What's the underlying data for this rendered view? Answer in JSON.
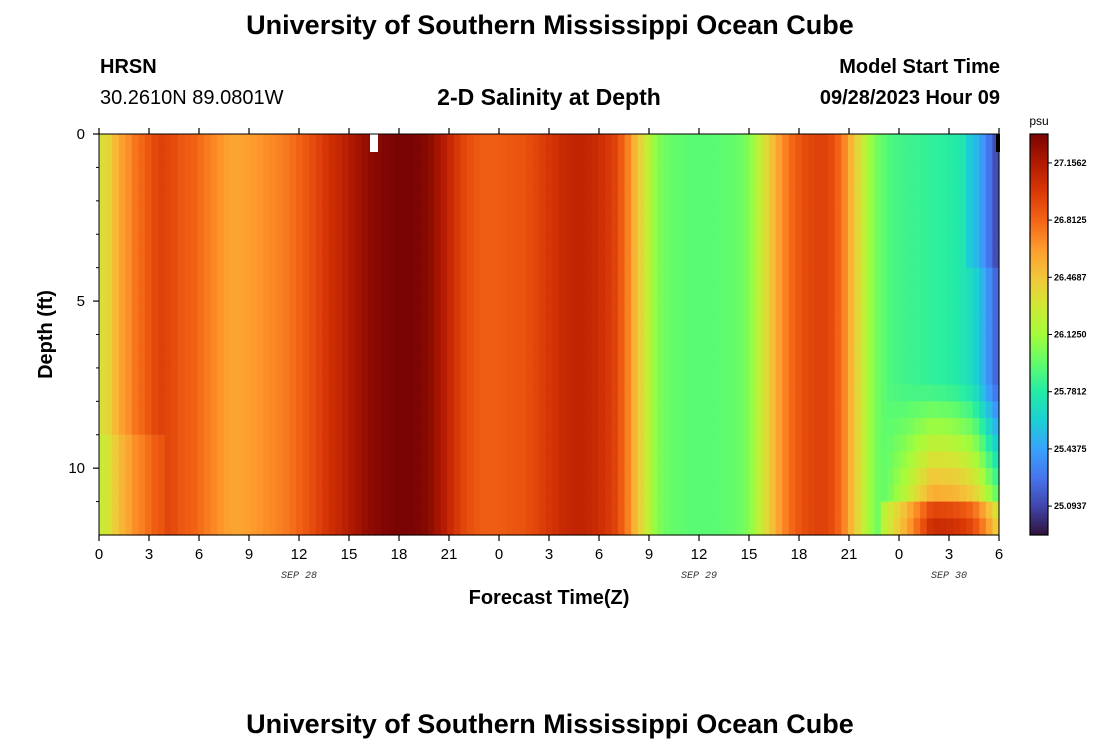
{
  "page": {
    "title_top": "University of Southern Mississippi Ocean Cube",
    "title_bottom": "University of Southern Mississippi Ocean Cube",
    "station": "HRSN",
    "coords": "30.2610N  89.0801W",
    "plot_title": "2-D Salinity at Depth",
    "model_start_label": "Model Start Time",
    "model_start_value": "09/28/2023 Hour 09"
  },
  "chart_data": {
    "type": "heatmap",
    "title": "2-D Salinity at Depth",
    "xlabel": "Forecast Time(Z)",
    "ylabel": "Depth (ft)",
    "x_ticks": [
      "0",
      "3",
      "6",
      "9",
      "12",
      "15",
      "18",
      "21",
      "0",
      "3",
      "6",
      "9",
      "12",
      "15",
      "18",
      "21",
      "0",
      "3",
      "6"
    ],
    "date_labels": [
      {
        "text": "SEP 28",
        "at_hour": 12
      },
      {
        "text": "SEP 29",
        "at_hour": 36
      },
      {
        "text": "SEP 30",
        "at_hour": 51
      }
    ],
    "y_ticks": [
      "0",
      "5",
      "10"
    ],
    "x_range_hours": [
      0,
      54
    ],
    "y_range_ft": [
      0,
      12
    ],
    "colorbar": {
      "unit": "psu",
      "min": 24.92,
      "max": 27.33,
      "tick_labels": [
        "27.1562",
        "26.8125",
        "26.4687",
        "26.1250",
        "25.7812",
        "25.4375",
        "25.0937"
      ],
      "tick_values": [
        27.1562,
        26.8125,
        26.4687,
        26.125,
        25.7812,
        25.4375,
        25.0937
      ],
      "colors": [
        "#30123b",
        "#4145ab",
        "#4675ed",
        "#39a2fc",
        "#1bcfd4",
        "#24eca6",
        "#61fc6c",
        "#a4fc3b",
        "#d1e834",
        "#f3c63a",
        "#fe9b2d",
        "#f36315",
        "#d93806",
        "#b11901",
        "#7a0403"
      ]
    },
    "column_salinity_psu": [
      26.35,
      26.4,
      26.52,
      26.62,
      26.68,
      26.76,
      26.8,
      26.86,
      26.92,
      26.95,
      26.93,
      26.9,
      26.86,
      26.84,
      26.82,
      26.78,
      26.74,
      26.7,
      26.66,
      26.62,
      26.6,
      26.6,
      26.62,
      26.64,
      26.66,
      26.68,
      26.7,
      26.72,
      26.75,
      26.78,
      26.82,
      26.86,
      26.9,
      26.95,
      27.0,
      27.04,
      27.08,
      27.12,
      27.16,
      27.2,
      27.24,
      27.27,
      27.29,
      27.31,
      27.32,
      27.33,
      27.33,
      27.33,
      27.32,
      27.3,
      27.26,
      27.2,
      27.14,
      27.06,
      26.99,
      26.93,
      26.89,
      26.86,
      26.84,
      26.84,
      26.84,
      26.85,
      26.86,
      26.87,
      26.88,
      26.9,
      26.93,
      26.96,
      27.0,
      27.03,
      27.06,
      27.08,
      27.09,
      27.09,
      27.08,
      27.06,
      27.03,
      26.99,
      26.94,
      26.85,
      26.72,
      26.55,
      26.4,
      26.25,
      26.1,
      26.02,
      25.98,
      25.96,
      25.95,
      25.94,
      25.93,
      25.93,
      25.93,
      25.93,
      25.94,
      25.95,
      25.96,
      25.98,
      26.02,
      26.1,
      26.22,
      26.36,
      26.5,
      26.62,
      26.72,
      26.8,
      26.86,
      26.9,
      26.93,
      26.95,
      26.94,
      26.9,
      26.82,
      26.7,
      26.54,
      26.38,
      26.22,
      26.1,
      26.0,
      25.94,
      25.9,
      25.88,
      25.86,
      25.85,
      25.84,
      25.83,
      25.82,
      25.81,
      25.8,
      25.79,
      25.77,
      25.74,
      25.7,
      25.62,
      25.5,
      25.36,
      25.22
    ],
    "special_markers": [
      {
        "kind": "white-gap",
        "at_hour": 16.5
      },
      {
        "kind": "black-gap",
        "at_hour": 54
      }
    ]
  }
}
